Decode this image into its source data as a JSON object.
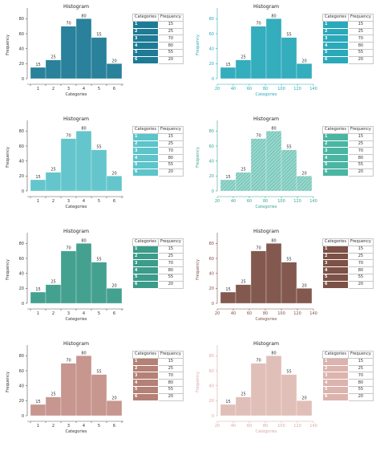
{
  "chart_data": [
    {
      "type": "bar",
      "variant": "categorical",
      "title": "Histogram",
      "xlabel": "Categories",
      "ylabel": "Frequency",
      "categories": [
        "1",
        "2",
        "3",
        "4",
        "5",
        "6"
      ],
      "values": [
        15,
        25,
        70,
        80,
        55,
        20
      ],
      "ylim": [
        0,
        90
      ],
      "yticks": [
        0,
        20,
        40,
        60,
        80
      ],
      "color": "#1e7b96",
      "fill_color": "#1e7b96",
      "axis_color": "#555555",
      "pattern": "solid",
      "table": {
        "headers": [
          "Categories",
          "Frequency"
        ],
        "rows": [
          [
            "1",
            "15"
          ],
          [
            "2",
            "25"
          ],
          [
            "3",
            "70"
          ],
          [
            "4",
            "80"
          ],
          [
            "5",
            "55"
          ],
          [
            "6",
            "20"
          ]
        ]
      }
    },
    {
      "type": "bar",
      "variant": "numeric",
      "title": "Histogram",
      "xlabel": "Categories",
      "ylabel": "Frequency",
      "categories": [
        "1",
        "2",
        "3",
        "4",
        "5",
        "6"
      ],
      "values": [
        15,
        25,
        70,
        80,
        55,
        20
      ],
      "xticks": [
        20,
        40,
        60,
        80,
        100,
        120,
        140
      ],
      "xlim": [
        20,
        140
      ],
      "ylim": [
        0,
        90
      ],
      "yticks": [
        0,
        20,
        40,
        60,
        80
      ],
      "color": "#2aa9ba",
      "fill_color": "#2aa9ba",
      "axis_color": "#2aa9ba",
      "pattern": "solid",
      "table": {
        "headers": [
          "Categories",
          "Frequency"
        ],
        "rows": [
          [
            "1",
            "15"
          ],
          [
            "2",
            "25"
          ],
          [
            "3",
            "70"
          ],
          [
            "4",
            "80"
          ],
          [
            "5",
            "55"
          ],
          [
            "6",
            "20"
          ]
        ]
      }
    },
    {
      "type": "bar",
      "variant": "categorical",
      "title": "Histogram",
      "xlabel": "Categories",
      "ylabel": "Frequency",
      "categories": [
        "1",
        "2",
        "3",
        "4",
        "5",
        "6"
      ],
      "values": [
        15,
        25,
        70,
        80,
        55,
        20
      ],
      "ylim": [
        0,
        90
      ],
      "yticks": [
        0,
        20,
        40,
        60,
        80
      ],
      "color": "#5cc4ca",
      "fill_color": "#5cc4ca",
      "axis_color": "#555555",
      "pattern": "solid",
      "table": {
        "headers": [
          "Categories",
          "Frequency"
        ],
        "rows": [
          [
            "1",
            "15"
          ],
          [
            "2",
            "25"
          ],
          [
            "3",
            "70"
          ],
          [
            "4",
            "80"
          ],
          [
            "5",
            "55"
          ],
          [
            "6",
            "20"
          ]
        ]
      }
    },
    {
      "type": "bar",
      "variant": "numeric",
      "title": "Histogram",
      "xlabel": "Categories",
      "ylabel": "Frequency",
      "categories": [
        "1",
        "2",
        "3",
        "4",
        "5",
        "6"
      ],
      "values": [
        15,
        25,
        70,
        80,
        55,
        20
      ],
      "xticks": [
        20,
        40,
        60,
        80,
        100,
        120,
        140
      ],
      "xlim": [
        20,
        140
      ],
      "ylim": [
        0,
        90
      ],
      "yticks": [
        0,
        20,
        40,
        60,
        80
      ],
      "color": "#4ab5a3",
      "fill_color": "#4ab5a3",
      "axis_color": "#3aa592",
      "pattern": "hatch",
      "table": {
        "headers": [
          "Categories",
          "Frequency"
        ],
        "rows": [
          [
            "1",
            "15"
          ],
          [
            "2",
            "25"
          ],
          [
            "3",
            "70"
          ],
          [
            "4",
            "80"
          ],
          [
            "5",
            "55"
          ],
          [
            "6",
            "20"
          ]
        ]
      }
    },
    {
      "type": "bar",
      "variant": "categorical",
      "title": "Histogram",
      "xlabel": "Categories",
      "ylabel": "Frequency",
      "categories": [
        "1",
        "2",
        "3",
        "4",
        "5",
        "6"
      ],
      "values": [
        15,
        25,
        70,
        80,
        55,
        20
      ],
      "ylim": [
        0,
        90
      ],
      "yticks": [
        0,
        20,
        40,
        60,
        80
      ],
      "color": "#3b9c8a",
      "fill_color": "#3b9c8a",
      "axis_color": "#555555",
      "pattern": "solid",
      "table": {
        "headers": [
          "Categories",
          "Frequency"
        ],
        "rows": [
          [
            "1",
            "15"
          ],
          [
            "2",
            "25"
          ],
          [
            "3",
            "70"
          ],
          [
            "4",
            "80"
          ],
          [
            "5",
            "55"
          ],
          [
            "6",
            "20"
          ]
        ]
      }
    },
    {
      "type": "bar",
      "variant": "numeric",
      "title": "Histogram",
      "xlabel": "Categories",
      "ylabel": "Frequency",
      "categories": [
        "1",
        "2",
        "3",
        "4",
        "5",
        "6"
      ],
      "values": [
        15,
        25,
        70,
        80,
        55,
        20
      ],
      "xticks": [
        20,
        40,
        60,
        80,
        100,
        120,
        140
      ],
      "xlim": [
        20,
        140
      ],
      "ylim": [
        0,
        90
      ],
      "yticks": [
        0,
        20,
        40,
        60,
        80
      ],
      "color": "#7d5146",
      "fill_color": "#7d5146",
      "axis_color": "#7d5146",
      "pattern": "solid",
      "table": {
        "headers": [
          "Categories",
          "Frequency"
        ],
        "rows": [
          [
            "1",
            "15"
          ],
          [
            "2",
            "25"
          ],
          [
            "3",
            "70"
          ],
          [
            "4",
            "80"
          ],
          [
            "5",
            "55"
          ],
          [
            "6",
            "20"
          ]
        ]
      }
    },
    {
      "type": "bar",
      "variant": "categorical",
      "title": "Histogram",
      "xlabel": "Categories",
      "ylabel": "Frequency",
      "categories": [
        "1",
        "2",
        "3",
        "4",
        "5",
        "6"
      ],
      "values": [
        15,
        25,
        70,
        80,
        55,
        20
      ],
      "ylim": [
        0,
        90
      ],
      "yticks": [
        0,
        20,
        40,
        60,
        80
      ],
      "color": "#b58075",
      "fill_color": "#c4918a",
      "axis_color": "#555555",
      "pattern": "solid",
      "table": {
        "headers": [
          "Categories",
          "Frequency"
        ],
        "rows": [
          [
            "1",
            "15"
          ],
          [
            "2",
            "25"
          ],
          [
            "3",
            "70"
          ],
          [
            "4",
            "80"
          ],
          [
            "5",
            "55"
          ],
          [
            "6",
            "20"
          ]
        ]
      }
    },
    {
      "type": "bar",
      "variant": "numeric",
      "title": "Histogram",
      "xlabel": "Categories",
      "ylabel": "Frequency",
      "categories": [
        "1",
        "2",
        "3",
        "4",
        "5",
        "6"
      ],
      "values": [
        15,
        25,
        70,
        80,
        55,
        20
      ],
      "xticks": [
        20,
        40,
        60,
        80,
        100,
        120,
        140
      ],
      "xlim": [
        20,
        140
      ],
      "ylim": [
        0,
        90
      ],
      "yticks": [
        0,
        20,
        40,
        60,
        80
      ],
      "color": "#dcb3ad",
      "fill_color": "#e0bcb6",
      "axis_color": "#d8aaa3",
      "pattern": "solid",
      "table": {
        "headers": [
          "Categories",
          "Frequency"
        ],
        "rows": [
          [
            "1",
            "15"
          ],
          [
            "2",
            "25"
          ],
          [
            "3",
            "70"
          ],
          [
            "4",
            "80"
          ],
          [
            "5",
            "55"
          ],
          [
            "6",
            "20"
          ]
        ]
      }
    }
  ]
}
